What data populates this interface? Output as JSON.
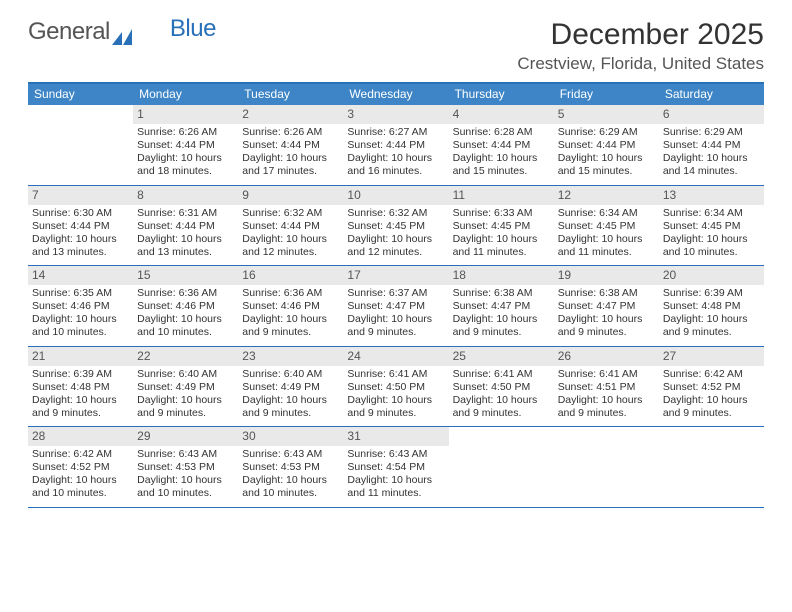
{
  "brand": {
    "part1": "General",
    "part2": "Blue"
  },
  "title": "December 2025",
  "location": "Crestview, Florida, United States",
  "colors": {
    "accent": "#2970b8",
    "header_bg": "#3d85c6",
    "daynum_bg": "#e9e9e9",
    "text": "#333333",
    "muted": "#555555",
    "background": "#ffffff"
  },
  "fonts": {
    "base_family": "Arial",
    "title_size_pt": 30,
    "body_size_pt": 10.5
  },
  "dow": [
    "Sunday",
    "Monday",
    "Tuesday",
    "Wednesday",
    "Thursday",
    "Friday",
    "Saturday"
  ],
  "weeks": [
    [
      {
        "num": "",
        "sunrise": "",
        "sunset": "",
        "daylight": ""
      },
      {
        "num": "1",
        "sunrise": "Sunrise: 6:26 AM",
        "sunset": "Sunset: 4:44 PM",
        "daylight": "Daylight: 10 hours and 18 minutes."
      },
      {
        "num": "2",
        "sunrise": "Sunrise: 6:26 AM",
        "sunset": "Sunset: 4:44 PM",
        "daylight": "Daylight: 10 hours and 17 minutes."
      },
      {
        "num": "3",
        "sunrise": "Sunrise: 6:27 AM",
        "sunset": "Sunset: 4:44 PM",
        "daylight": "Daylight: 10 hours and 16 minutes."
      },
      {
        "num": "4",
        "sunrise": "Sunrise: 6:28 AM",
        "sunset": "Sunset: 4:44 PM",
        "daylight": "Daylight: 10 hours and 15 minutes."
      },
      {
        "num": "5",
        "sunrise": "Sunrise: 6:29 AM",
        "sunset": "Sunset: 4:44 PM",
        "daylight": "Daylight: 10 hours and 15 minutes."
      },
      {
        "num": "6",
        "sunrise": "Sunrise: 6:29 AM",
        "sunset": "Sunset: 4:44 PM",
        "daylight": "Daylight: 10 hours and 14 minutes."
      }
    ],
    [
      {
        "num": "7",
        "sunrise": "Sunrise: 6:30 AM",
        "sunset": "Sunset: 4:44 PM",
        "daylight": "Daylight: 10 hours and 13 minutes."
      },
      {
        "num": "8",
        "sunrise": "Sunrise: 6:31 AM",
        "sunset": "Sunset: 4:44 PM",
        "daylight": "Daylight: 10 hours and 13 minutes."
      },
      {
        "num": "9",
        "sunrise": "Sunrise: 6:32 AM",
        "sunset": "Sunset: 4:44 PM",
        "daylight": "Daylight: 10 hours and 12 minutes."
      },
      {
        "num": "10",
        "sunrise": "Sunrise: 6:32 AM",
        "sunset": "Sunset: 4:45 PM",
        "daylight": "Daylight: 10 hours and 12 minutes."
      },
      {
        "num": "11",
        "sunrise": "Sunrise: 6:33 AM",
        "sunset": "Sunset: 4:45 PM",
        "daylight": "Daylight: 10 hours and 11 minutes."
      },
      {
        "num": "12",
        "sunrise": "Sunrise: 6:34 AM",
        "sunset": "Sunset: 4:45 PM",
        "daylight": "Daylight: 10 hours and 11 minutes."
      },
      {
        "num": "13",
        "sunrise": "Sunrise: 6:34 AM",
        "sunset": "Sunset: 4:45 PM",
        "daylight": "Daylight: 10 hours and 10 minutes."
      }
    ],
    [
      {
        "num": "14",
        "sunrise": "Sunrise: 6:35 AM",
        "sunset": "Sunset: 4:46 PM",
        "daylight": "Daylight: 10 hours and 10 minutes."
      },
      {
        "num": "15",
        "sunrise": "Sunrise: 6:36 AM",
        "sunset": "Sunset: 4:46 PM",
        "daylight": "Daylight: 10 hours and 10 minutes."
      },
      {
        "num": "16",
        "sunrise": "Sunrise: 6:36 AM",
        "sunset": "Sunset: 4:46 PM",
        "daylight": "Daylight: 10 hours and 9 minutes."
      },
      {
        "num": "17",
        "sunrise": "Sunrise: 6:37 AM",
        "sunset": "Sunset: 4:47 PM",
        "daylight": "Daylight: 10 hours and 9 minutes."
      },
      {
        "num": "18",
        "sunrise": "Sunrise: 6:38 AM",
        "sunset": "Sunset: 4:47 PM",
        "daylight": "Daylight: 10 hours and 9 minutes."
      },
      {
        "num": "19",
        "sunrise": "Sunrise: 6:38 AM",
        "sunset": "Sunset: 4:47 PM",
        "daylight": "Daylight: 10 hours and 9 minutes."
      },
      {
        "num": "20",
        "sunrise": "Sunrise: 6:39 AM",
        "sunset": "Sunset: 4:48 PM",
        "daylight": "Daylight: 10 hours and 9 minutes."
      }
    ],
    [
      {
        "num": "21",
        "sunrise": "Sunrise: 6:39 AM",
        "sunset": "Sunset: 4:48 PM",
        "daylight": "Daylight: 10 hours and 9 minutes."
      },
      {
        "num": "22",
        "sunrise": "Sunrise: 6:40 AM",
        "sunset": "Sunset: 4:49 PM",
        "daylight": "Daylight: 10 hours and 9 minutes."
      },
      {
        "num": "23",
        "sunrise": "Sunrise: 6:40 AM",
        "sunset": "Sunset: 4:49 PM",
        "daylight": "Daylight: 10 hours and 9 minutes."
      },
      {
        "num": "24",
        "sunrise": "Sunrise: 6:41 AM",
        "sunset": "Sunset: 4:50 PM",
        "daylight": "Daylight: 10 hours and 9 minutes."
      },
      {
        "num": "25",
        "sunrise": "Sunrise: 6:41 AM",
        "sunset": "Sunset: 4:50 PM",
        "daylight": "Daylight: 10 hours and 9 minutes."
      },
      {
        "num": "26",
        "sunrise": "Sunrise: 6:41 AM",
        "sunset": "Sunset: 4:51 PM",
        "daylight": "Daylight: 10 hours and 9 minutes."
      },
      {
        "num": "27",
        "sunrise": "Sunrise: 6:42 AM",
        "sunset": "Sunset: 4:52 PM",
        "daylight": "Daylight: 10 hours and 9 minutes."
      }
    ],
    [
      {
        "num": "28",
        "sunrise": "Sunrise: 6:42 AM",
        "sunset": "Sunset: 4:52 PM",
        "daylight": "Daylight: 10 hours and 10 minutes."
      },
      {
        "num": "29",
        "sunrise": "Sunrise: 6:43 AM",
        "sunset": "Sunset: 4:53 PM",
        "daylight": "Daylight: 10 hours and 10 minutes."
      },
      {
        "num": "30",
        "sunrise": "Sunrise: 6:43 AM",
        "sunset": "Sunset: 4:53 PM",
        "daylight": "Daylight: 10 hours and 10 minutes."
      },
      {
        "num": "31",
        "sunrise": "Sunrise: 6:43 AM",
        "sunset": "Sunset: 4:54 PM",
        "daylight": "Daylight: 10 hours and 11 minutes."
      },
      {
        "num": "",
        "sunrise": "",
        "sunset": "",
        "daylight": ""
      },
      {
        "num": "",
        "sunrise": "",
        "sunset": "",
        "daylight": ""
      },
      {
        "num": "",
        "sunrise": "",
        "sunset": "",
        "daylight": ""
      }
    ]
  ]
}
